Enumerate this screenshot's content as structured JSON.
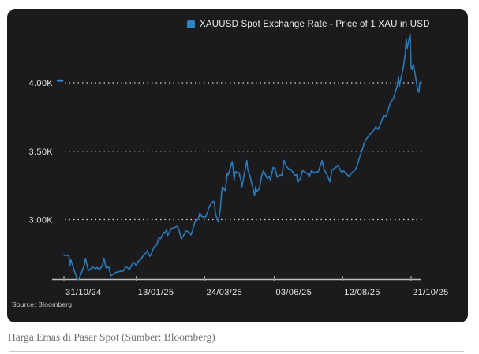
{
  "page": {
    "caption": "Harga Emas di Pasar Spot (Sumber: Bloomberg)",
    "background": "#ffffff"
  },
  "chart": {
    "background": "#1b1b1d",
    "colors": {
      "line": "#2b7bb9",
      "accent": "#2e86c6",
      "grid": "#d9d9d9",
      "axis": "#bfbfbf",
      "tick": "#9f9f9f",
      "label": "#e3e3e3"
    }
  },
  "chart_data": {
    "type": "line",
    "title": "XAUUSD Spot Exchange Rate - Price of 1 XAU in USD",
    "source": "Source: Bloomberg",
    "legend_position": "top",
    "grid": "horizontal-dotted",
    "ylim": [
      2560,
      4400
    ],
    "y_ticks": [
      {
        "value": 3000,
        "label": "3.00K"
      },
      {
        "value": 3500,
        "label": "3.50K"
      },
      {
        "value": 4000,
        "label": "4.00K"
      }
    ],
    "x_ticks": [
      {
        "date": "2024-10-31",
        "label": "31/10/24"
      },
      {
        "date": "2025-01-13",
        "label": "13/01/25"
      },
      {
        "date": "2025-03-24",
        "label": "24/03/25"
      },
      {
        "date": "2025-06-03",
        "label": "03/06/25"
      },
      {
        "date": "2025-08-12",
        "label": "12/08/25"
      },
      {
        "date": "2025-10-21",
        "label": "21/10/25"
      }
    ],
    "last_price_marker": 4004,
    "series": [
      {
        "name": "XAUUSD Spot Exchange Rate - Price of 1 XAU in USD",
        "points": [
          [
            "2024-10-31",
            2744
          ],
          [
            "2024-11-01",
            2737
          ],
          [
            "2024-11-04",
            2737
          ],
          [
            "2024-11-05",
            2744
          ],
          [
            "2024-11-06",
            2659
          ],
          [
            "2024-11-07",
            2707
          ],
          [
            "2024-11-08",
            2684
          ],
          [
            "2024-11-11",
            2619
          ],
          [
            "2024-11-12",
            2599
          ],
          [
            "2024-11-13",
            2573
          ],
          [
            "2024-11-14",
            2563
          ],
          [
            "2024-11-15",
            2563
          ],
          [
            "2024-11-18",
            2612
          ],
          [
            "2024-11-19",
            2632
          ],
          [
            "2024-11-20",
            2651
          ],
          [
            "2024-11-21",
            2670
          ],
          [
            "2024-11-22",
            2716
          ],
          [
            "2024-11-25",
            2626
          ],
          [
            "2024-11-26",
            2633
          ],
          [
            "2024-11-27",
            2636
          ],
          [
            "2024-11-29",
            2654
          ],
          [
            "2024-12-02",
            2639
          ],
          [
            "2024-12-04",
            2650
          ],
          [
            "2024-12-06",
            2633
          ],
          [
            "2024-12-09",
            2659
          ],
          [
            "2024-12-11",
            2718
          ],
          [
            "2024-12-12",
            2681
          ],
          [
            "2024-12-13",
            2648
          ],
          [
            "2024-12-16",
            2652
          ],
          [
            "2024-12-18",
            2590
          ],
          [
            "2024-12-19",
            2594
          ],
          [
            "2024-12-23",
            2613
          ],
          [
            "2024-12-27",
            2621
          ],
          [
            "2024-12-31",
            2625
          ],
          [
            "2025-01-02",
            2658
          ],
          [
            "2025-01-06",
            2636
          ],
          [
            "2025-01-08",
            2662
          ],
          [
            "2025-01-10",
            2690
          ],
          [
            "2025-01-13",
            2663
          ],
          [
            "2025-01-15",
            2696
          ],
          [
            "2025-01-17",
            2703
          ],
          [
            "2025-01-21",
            2745
          ],
          [
            "2025-01-23",
            2755
          ],
          [
            "2025-01-24",
            2771
          ],
          [
            "2025-01-27",
            2731
          ],
          [
            "2025-01-29",
            2760
          ],
          [
            "2025-01-31",
            2798
          ],
          [
            "2025-02-03",
            2815
          ],
          [
            "2025-02-05",
            2866
          ],
          [
            "2025-02-07",
            2861
          ],
          [
            "2025-02-10",
            2908
          ],
          [
            "2025-02-11",
            2898
          ],
          [
            "2025-02-13",
            2928
          ],
          [
            "2025-02-14",
            2883
          ],
          [
            "2025-02-18",
            2935
          ],
          [
            "2025-02-20",
            2939
          ],
          [
            "2025-02-24",
            2951
          ],
          [
            "2025-02-26",
            2916
          ],
          [
            "2025-02-28",
            2858
          ],
          [
            "2025-03-03",
            2893
          ],
          [
            "2025-03-05",
            2919
          ],
          [
            "2025-03-07",
            2910
          ],
          [
            "2025-03-10",
            2889
          ],
          [
            "2025-03-12",
            2934
          ],
          [
            "2025-03-14",
            2984
          ],
          [
            "2025-03-17",
            3001
          ],
          [
            "2025-03-19",
            3047
          ],
          [
            "2025-03-21",
            3022
          ],
          [
            "2025-03-25",
            3020
          ],
          [
            "2025-03-27",
            3057
          ],
          [
            "2025-03-28",
            3085
          ],
          [
            "2025-03-31",
            3124
          ],
          [
            "2025-04-02",
            3133
          ],
          [
            "2025-04-03",
            3115
          ],
          [
            "2025-04-04",
            3038
          ],
          [
            "2025-04-07",
            2982
          ],
          [
            "2025-04-09",
            3082
          ],
          [
            "2025-04-10",
            3176
          ],
          [
            "2025-04-11",
            3238
          ],
          [
            "2025-04-14",
            3211
          ],
          [
            "2025-04-16",
            3339
          ],
          [
            "2025-04-17",
            3327
          ],
          [
            "2025-04-21",
            3424
          ],
          [
            "2025-04-22",
            3381
          ],
          [
            "2025-04-23",
            3288
          ],
          [
            "2025-04-24",
            3349
          ],
          [
            "2025-04-28",
            3342
          ],
          [
            "2025-04-30",
            3288
          ],
          [
            "2025-05-01",
            3239
          ],
          [
            "2025-05-06",
            3432
          ],
          [
            "2025-05-07",
            3364
          ],
          [
            "2025-05-09",
            3325
          ],
          [
            "2025-05-12",
            3236
          ],
          [
            "2025-05-14",
            3177
          ],
          [
            "2025-05-15",
            3240
          ],
          [
            "2025-05-16",
            3203
          ],
          [
            "2025-05-19",
            3230
          ],
          [
            "2025-05-21",
            3315
          ],
          [
            "2025-05-23",
            3357
          ],
          [
            "2025-05-27",
            3300
          ],
          [
            "2025-05-29",
            3317
          ],
          [
            "2025-05-30",
            3289
          ],
          [
            "2025-06-02",
            3381
          ],
          [
            "2025-06-04",
            3373
          ],
          [
            "2025-06-06",
            3310
          ],
          [
            "2025-06-09",
            3327
          ],
          [
            "2025-06-11",
            3323
          ],
          [
            "2025-06-13",
            3432
          ],
          [
            "2025-06-16",
            3385
          ],
          [
            "2025-06-18",
            3369
          ],
          [
            "2025-06-20",
            3368
          ],
          [
            "2025-06-24",
            3324
          ],
          [
            "2025-06-26",
            3328
          ],
          [
            "2025-06-27",
            3274
          ],
          [
            "2025-06-30",
            3303
          ],
          [
            "2025-07-02",
            3357
          ],
          [
            "2025-07-07",
            3337
          ],
          [
            "2025-07-09",
            3313
          ],
          [
            "2025-07-11",
            3356
          ],
          [
            "2025-07-14",
            3343
          ],
          [
            "2025-07-16",
            3347
          ],
          [
            "2025-07-18",
            3350
          ],
          [
            "2025-07-22",
            3431
          ],
          [
            "2025-07-24",
            3368
          ],
          [
            "2025-07-28",
            3314
          ],
          [
            "2025-07-30",
            3275
          ],
          [
            "2025-08-01",
            3363
          ],
          [
            "2025-08-05",
            3381
          ],
          [
            "2025-08-07",
            3397
          ],
          [
            "2025-08-11",
            3344
          ],
          [
            "2025-08-13",
            3355
          ],
          [
            "2025-08-15",
            3336
          ],
          [
            "2025-08-19",
            3315
          ],
          [
            "2025-08-21",
            3339
          ],
          [
            "2025-08-25",
            3365
          ],
          [
            "2025-08-27",
            3397
          ],
          [
            "2025-08-29",
            3448
          ],
          [
            "2025-09-02",
            3533
          ],
          [
            "2025-09-03",
            3559
          ],
          [
            "2025-09-05",
            3587
          ],
          [
            "2025-09-09",
            3625
          ],
          [
            "2025-09-11",
            3634
          ],
          [
            "2025-09-15",
            3679
          ],
          [
            "2025-09-17",
            3660
          ],
          [
            "2025-09-19",
            3685
          ],
          [
            "2025-09-23",
            3764
          ],
          [
            "2025-09-25",
            3749
          ],
          [
            "2025-09-29",
            3833
          ],
          [
            "2025-09-30",
            3858
          ],
          [
            "2025-10-01",
            3866
          ],
          [
            "2025-10-03",
            3886
          ],
          [
            "2025-10-07",
            3983
          ],
          [
            "2025-10-08",
            4041
          ],
          [
            "2025-10-09",
            3976
          ],
          [
            "2025-10-13",
            4110
          ],
          [
            "2025-10-15",
            4209
          ],
          [
            "2025-10-16",
            4325
          ],
          [
            "2025-10-17",
            4251
          ],
          [
            "2025-10-20",
            4356
          ],
          [
            "2025-10-21",
            4110
          ],
          [
            "2025-10-22",
            4095
          ],
          [
            "2025-10-23",
            4130
          ],
          [
            "2025-10-24",
            4113
          ],
          [
            "2025-10-27",
            3982
          ],
          [
            "2025-10-28",
            3940
          ],
          [
            "2025-10-29",
            3930
          ],
          [
            "2025-10-30",
            4004
          ]
        ]
      }
    ]
  }
}
